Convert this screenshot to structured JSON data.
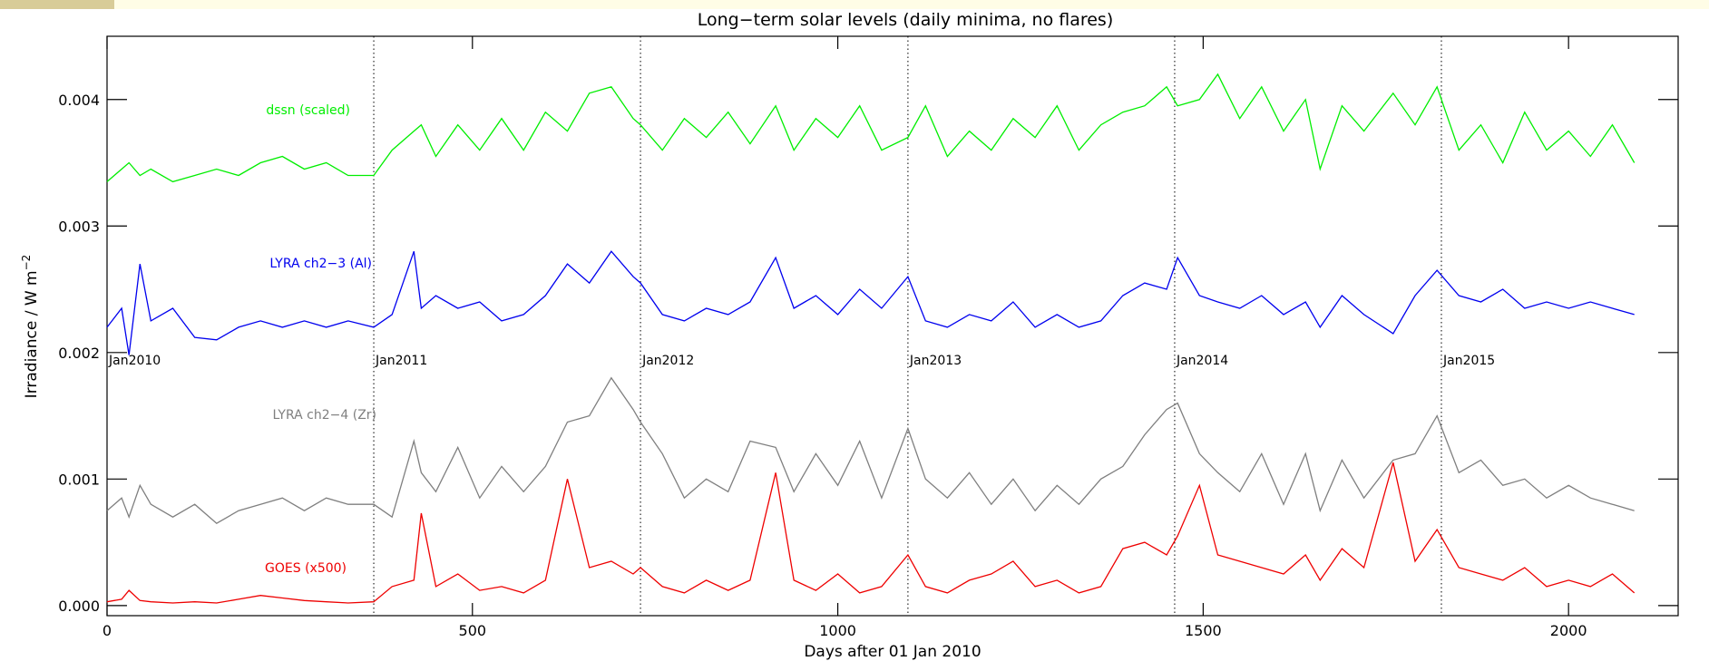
{
  "chart_data": {
    "type": "line",
    "title": "Long−term solar levels (daily minima, no flares)",
    "xlabel": "Days after 01 Jan 2010",
    "ylabel": "Irradiance / W m",
    "ylabel_sup": "−2",
    "xlim": [
      0,
      2150
    ],
    "ylim": [
      -8e-05,
      0.0045
    ],
    "xticks": [
      0,
      500,
      1000,
      1500,
      2000
    ],
    "yticks": [
      {
        "value": 0,
        "label": "0.000"
      },
      {
        "value": 0.001,
        "label": "0.001"
      },
      {
        "value": 0.002,
        "label": "0.002"
      },
      {
        "value": 0.003,
        "label": "0.003"
      },
      {
        "value": 0.004,
        "label": "0.004"
      }
    ],
    "markers": [
      {
        "x": 0,
        "label": "Jan2010"
      },
      {
        "x": 365,
        "label": "Jan2011"
      },
      {
        "x": 730,
        "label": "Jan2012"
      },
      {
        "x": 1096,
        "label": "Jan2013"
      },
      {
        "x": 1461,
        "label": "Jan2014"
      },
      {
        "x": 1826,
        "label": "Jan2015"
      }
    ],
    "x": [
      0,
      20,
      30,
      45,
      60,
      90,
      120,
      150,
      180,
      210,
      240,
      270,
      300,
      330,
      365,
      390,
      420,
      430,
      450,
      480,
      510,
      540,
      570,
      600,
      630,
      660,
      690,
      720,
      730,
      760,
      790,
      820,
      850,
      880,
      915,
      940,
      970,
      1000,
      1030,
      1060,
      1096,
      1120,
      1150,
      1180,
      1210,
      1240,
      1270,
      1300,
      1330,
      1360,
      1390,
      1420,
      1450,
      1465,
      1495,
      1520,
      1550,
      1580,
      1610,
      1640,
      1660,
      1690,
      1720,
      1760,
      1790,
      1820,
      1850,
      1880,
      1910,
      1940,
      1970,
      2000,
      2030,
      2060,
      2090
    ],
    "series": [
      {
        "name": "dssn (scaled)",
        "color": "#00ee00",
        "values": [
          0.00335,
          0.00345,
          0.0035,
          0.0034,
          0.00345,
          0.00335,
          0.0034,
          0.00345,
          0.0034,
          0.0035,
          0.00355,
          0.00345,
          0.0035,
          0.0034,
          0.0034,
          0.0036,
          0.00375,
          0.0038,
          0.00355,
          0.0038,
          0.0036,
          0.00385,
          0.0036,
          0.0039,
          0.00375,
          0.00405,
          0.0041,
          0.00385,
          0.0038,
          0.0036,
          0.00385,
          0.0037,
          0.0039,
          0.00365,
          0.00395,
          0.0036,
          0.00385,
          0.0037,
          0.00395,
          0.0036,
          0.0037,
          0.00395,
          0.00355,
          0.00375,
          0.0036,
          0.00385,
          0.0037,
          0.00395,
          0.0036,
          0.0038,
          0.0039,
          0.00395,
          0.0041,
          0.00395,
          0.004,
          0.0042,
          0.00385,
          0.0041,
          0.00375,
          0.004,
          0.00345,
          0.00395,
          0.00375,
          0.00405,
          0.0038,
          0.0041,
          0.0036,
          0.0038,
          0.0035,
          0.0039,
          0.0036,
          0.00375,
          0.00355,
          0.0038,
          0.0035
        ]
      },
      {
        "name": "LYRA ch2−3 (Al)",
        "color": "#0000ee",
        "values": [
          0.0022,
          0.00235,
          0.00198,
          0.0027,
          0.00225,
          0.00235,
          0.00212,
          0.0021,
          0.0022,
          0.00225,
          0.0022,
          0.00225,
          0.0022,
          0.00225,
          0.0022,
          0.0023,
          0.0028,
          0.00235,
          0.00245,
          0.00235,
          0.0024,
          0.00225,
          0.0023,
          0.00245,
          0.0027,
          0.00255,
          0.0028,
          0.0026,
          0.00255,
          0.0023,
          0.00225,
          0.00235,
          0.0023,
          0.0024,
          0.00275,
          0.00235,
          0.00245,
          0.0023,
          0.0025,
          0.00235,
          0.0026,
          0.00225,
          0.0022,
          0.0023,
          0.00225,
          0.0024,
          0.0022,
          0.0023,
          0.0022,
          0.00225,
          0.00245,
          0.00255,
          0.0025,
          0.00275,
          0.00245,
          0.0024,
          0.00235,
          0.00245,
          0.0023,
          0.0024,
          0.0022,
          0.00245,
          0.0023,
          0.00215,
          0.00245,
          0.00265,
          0.00245,
          0.0024,
          0.0025,
          0.00235,
          0.0024,
          0.00235,
          0.0024,
          0.00235,
          0.0023
        ]
      },
      {
        "name": "LYRA ch2−4 (Zr)",
        "color": "#7f7f7f",
        "values": [
          0.00075,
          0.00085,
          0.0007,
          0.00095,
          0.0008,
          0.0007,
          0.0008,
          0.00065,
          0.00075,
          0.0008,
          0.00085,
          0.00075,
          0.00085,
          0.0008,
          0.0008,
          0.0007,
          0.0013,
          0.00105,
          0.0009,
          0.00125,
          0.00085,
          0.0011,
          0.0009,
          0.0011,
          0.00145,
          0.0015,
          0.0018,
          0.00155,
          0.00145,
          0.0012,
          0.00085,
          0.001,
          0.0009,
          0.0013,
          0.00125,
          0.0009,
          0.0012,
          0.00095,
          0.0013,
          0.00085,
          0.0014,
          0.001,
          0.00085,
          0.00105,
          0.0008,
          0.001,
          0.00075,
          0.00095,
          0.0008,
          0.001,
          0.0011,
          0.00135,
          0.00155,
          0.0016,
          0.0012,
          0.00105,
          0.0009,
          0.0012,
          0.0008,
          0.0012,
          0.00075,
          0.00115,
          0.00085,
          0.00115,
          0.0012,
          0.0015,
          0.00105,
          0.00115,
          0.00095,
          0.001,
          0.00085,
          0.00095,
          0.00085,
          0.0008,
          0.00075
        ]
      },
      {
        "name": "GOES (x500)",
        "color": "#ee0000",
        "values": [
          3e-05,
          5e-05,
          0.00012,
          4e-05,
          3e-05,
          2e-05,
          3e-05,
          2e-05,
          5e-05,
          8e-05,
          6e-05,
          4e-05,
          3e-05,
          2e-05,
          3e-05,
          0.00015,
          0.0002,
          0.00073,
          0.00015,
          0.00025,
          0.00012,
          0.00015,
          0.0001,
          0.0002,
          0.001,
          0.0003,
          0.00035,
          0.00025,
          0.0003,
          0.00015,
          0.0001,
          0.0002,
          0.00012,
          0.0002,
          0.00105,
          0.0002,
          0.00012,
          0.00025,
          0.0001,
          0.00015,
          0.0004,
          0.00015,
          0.0001,
          0.0002,
          0.00025,
          0.00035,
          0.00015,
          0.0002,
          0.0001,
          0.00015,
          0.00045,
          0.0005,
          0.0004,
          0.00055,
          0.00095,
          0.0004,
          0.00035,
          0.0003,
          0.00025,
          0.0004,
          0.0002,
          0.00045,
          0.0003,
          0.00113,
          0.00035,
          0.0006,
          0.0003,
          0.00025,
          0.0002,
          0.0003,
          0.00015,
          0.0002,
          0.00015,
          0.00025,
          0.0001
        ]
      }
    ]
  }
}
